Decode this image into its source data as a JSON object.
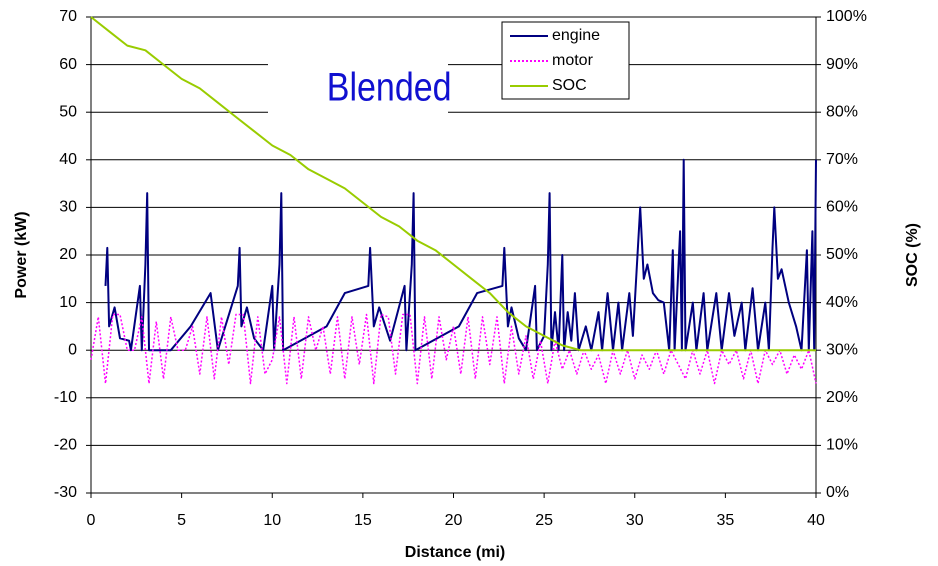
{
  "chart_data": {
    "type": "line",
    "annotation": "Blended",
    "xlabel": "Distance (mi)",
    "ylabel": "Power (kW)",
    "y2label": "SOC (%)",
    "xlim": [
      0,
      40
    ],
    "xticks": [
      0,
      5,
      10,
      15,
      20,
      25,
      30,
      35,
      40
    ],
    "ylim": [
      -30,
      70
    ],
    "yticks": [
      -30,
      -20,
      -10,
      0,
      10,
      20,
      30,
      40,
      50,
      60,
      70
    ],
    "y2lim": [
      0,
      100
    ],
    "y2ticks": [
      {
        "value": 0,
        "label": "0%"
      },
      {
        "value": 10,
        "label": "10%"
      },
      {
        "value": 20,
        "label": "20%"
      },
      {
        "value": 30,
        "label": "30%"
      },
      {
        "value": 40,
        "label": "40%"
      },
      {
        "value": 50,
        "label": "50%"
      },
      {
        "value": 60,
        "label": "60%"
      },
      {
        "value": 70,
        "label": "70%"
      },
      {
        "value": 80,
        "label": "80%"
      },
      {
        "value": 90,
        "label": "90%"
      },
      {
        "value": 100,
        "label": "100%"
      }
    ],
    "grid": true,
    "legend": "top",
    "series": [
      {
        "name": "engine",
        "color": "#000080",
        "style": "solid",
        "x": [
          0.8,
          0.9,
          1.0,
          1.3,
          1.6,
          2.1,
          2.2,
          2.7,
          2.8,
          3.0,
          3.1,
          3.2,
          4.4,
          5.5,
          6.6,
          7.0,
          8.1,
          8.2,
          8.3,
          8.6,
          9.0,
          9.5,
          10.0,
          10.1,
          10.4,
          10.5,
          10.6,
          13.0,
          14.0,
          15.3,
          15.4,
          15.6,
          15.9,
          16.5,
          17.3,
          17.4,
          17.7,
          17.8,
          17.9,
          20.3,
          21.3,
          22.7,
          22.8,
          23.0,
          23.2,
          23.6,
          24.0,
          24.5,
          24.6,
          25.0,
          25.2,
          25.3,
          25.4,
          25.6,
          25.8,
          26.0,
          26.1,
          26.3,
          26.5,
          26.7,
          26.9,
          27.3,
          27.6,
          28.0,
          28.2,
          28.5,
          28.8,
          29.1,
          29.3,
          29.7,
          29.9,
          30.3,
          30.5,
          30.7,
          31.0,
          31.3,
          31.6,
          31.9,
          32.1,
          32.2,
          32.5,
          32.6,
          32.7,
          32.8,
          33.2,
          33.4,
          33.8,
          34.0,
          34.5,
          34.8,
          35.2,
          35.5,
          35.9,
          36.1,
          36.5,
          36.8,
          37.2,
          37.4,
          37.6,
          37.7,
          37.9,
          38.1,
          38.5,
          38.9,
          39.2,
          39.5,
          39.6,
          39.8,
          39.9,
          40
        ],
        "values": [
          13.5,
          21.5,
          5,
          9,
          2.5,
          2,
          0,
          13.5,
          0,
          18,
          33,
          0,
          0,
          5,
          12,
          0,
          13.5,
          21.5,
          5,
          9,
          2.5,
          0,
          13.5,
          0,
          18,
          33,
          0,
          5,
          12,
          13.5,
          21.5,
          5,
          9,
          2,
          13.5,
          0,
          18,
          33,
          0,
          5,
          12,
          13.5,
          21.5,
          5,
          9,
          2.5,
          0,
          13.5,
          0,
          3,
          18,
          33,
          0,
          8,
          0,
          20,
          0,
          8,
          2,
          12,
          0,
          5,
          0,
          8,
          0,
          12,
          0,
          10,
          0,
          12,
          3,
          30,
          15,
          18,
          12,
          10.5,
          10,
          0,
          21,
          0,
          25,
          0,
          40,
          0,
          10,
          0,
          12,
          0,
          12,
          0,
          12,
          3,
          10,
          0,
          13,
          0,
          10,
          0,
          21.5,
          30,
          15,
          17,
          10,
          5,
          0,
          21,
          0,
          25,
          0,
          40
        ]
      },
      {
        "name": "motor",
        "color": "#ff00ff",
        "style": "dotted",
        "x": [
          0,
          0.4,
          0.8,
          1.2,
          1.6,
          2.0,
          2.4,
          2.8,
          3.2,
          3.6,
          4.0,
          4.4,
          4.8,
          5.2,
          5.6,
          6.0,
          6.4,
          6.8,
          7.2,
          7.6,
          8.0,
          8.4,
          8.8,
          9.2,
          9.6,
          10.0,
          10.4,
          10.8,
          11.2,
          11.6,
          12.0,
          12.4,
          12.8,
          13.2,
          13.6,
          14.0,
          14.4,
          14.8,
          15.2,
          15.6,
          16.0,
          16.4,
          16.8,
          17.2,
          17.6,
          18.0,
          18.4,
          18.8,
          19.2,
          19.6,
          20.0,
          20.4,
          20.8,
          21.2,
          21.6,
          22.0,
          22.4,
          22.8,
          23.2,
          23.6,
          24.0,
          24.4,
          24.8,
          25.2,
          25.6,
          26.0,
          26.4,
          26.8,
          27.2,
          27.6,
          28.0,
          28.4,
          28.8,
          29.2,
          29.6,
          30.0,
          30.4,
          30.8,
          31.2,
          31.6,
          32.0,
          32.4,
          32.8,
          33.2,
          33.6,
          34.0,
          34.4,
          34.8,
          35.2,
          35.6,
          36.0,
          36.4,
          36.8,
          37.2,
          37.6,
          38.0,
          38.4,
          38.8,
          39.2,
          39.6,
          40.0
        ],
        "values": [
          -2,
          7,
          -7,
          7.5,
          7.5,
          0,
          0,
          7,
          -7,
          6,
          -6,
          7,
          0,
          0,
          5,
          -5,
          7,
          -6,
          7,
          -3,
          7.5,
          7.5,
          -7,
          7,
          -5,
          -2,
          7,
          -7,
          7,
          -6,
          7,
          0,
          5,
          -5,
          7,
          -6,
          7,
          -3,
          7.5,
          -7,
          7.5,
          7,
          -5,
          7.5,
          7.5,
          -7,
          7,
          -6,
          7,
          -2,
          5,
          -5,
          7,
          -6,
          7,
          -3,
          7,
          -7,
          5,
          -5,
          3,
          -6,
          2,
          -7,
          2,
          -4,
          0,
          -5,
          0,
          -4,
          -1,
          -7,
          0,
          -5,
          0,
          -6,
          -1,
          -4,
          0,
          -5,
          0,
          -3,
          -6,
          0,
          -5,
          0,
          -7,
          0,
          -3,
          0,
          -6,
          0,
          -7,
          0,
          -3,
          0,
          -5,
          -1,
          -4,
          0,
          -7
        ]
      },
      {
        "name": "SOC",
        "color": "#99cc00",
        "style": "solid",
        "axis": "y2",
        "x": [
          0,
          1,
          2,
          3,
          4,
          5,
          6,
          7,
          8,
          9,
          10,
          11,
          12,
          13,
          14,
          15,
          16,
          17,
          18,
          19,
          20,
          21,
          22,
          23,
          24,
          25,
          26,
          27,
          40
        ],
        "values": [
          100,
          97,
          94,
          93,
          90,
          87,
          85,
          82,
          79,
          76,
          73,
          71,
          68,
          66,
          64,
          61,
          58,
          56,
          53,
          51,
          48,
          45,
          42,
          38,
          35,
          33,
          31,
          30,
          30
        ]
      }
    ]
  }
}
